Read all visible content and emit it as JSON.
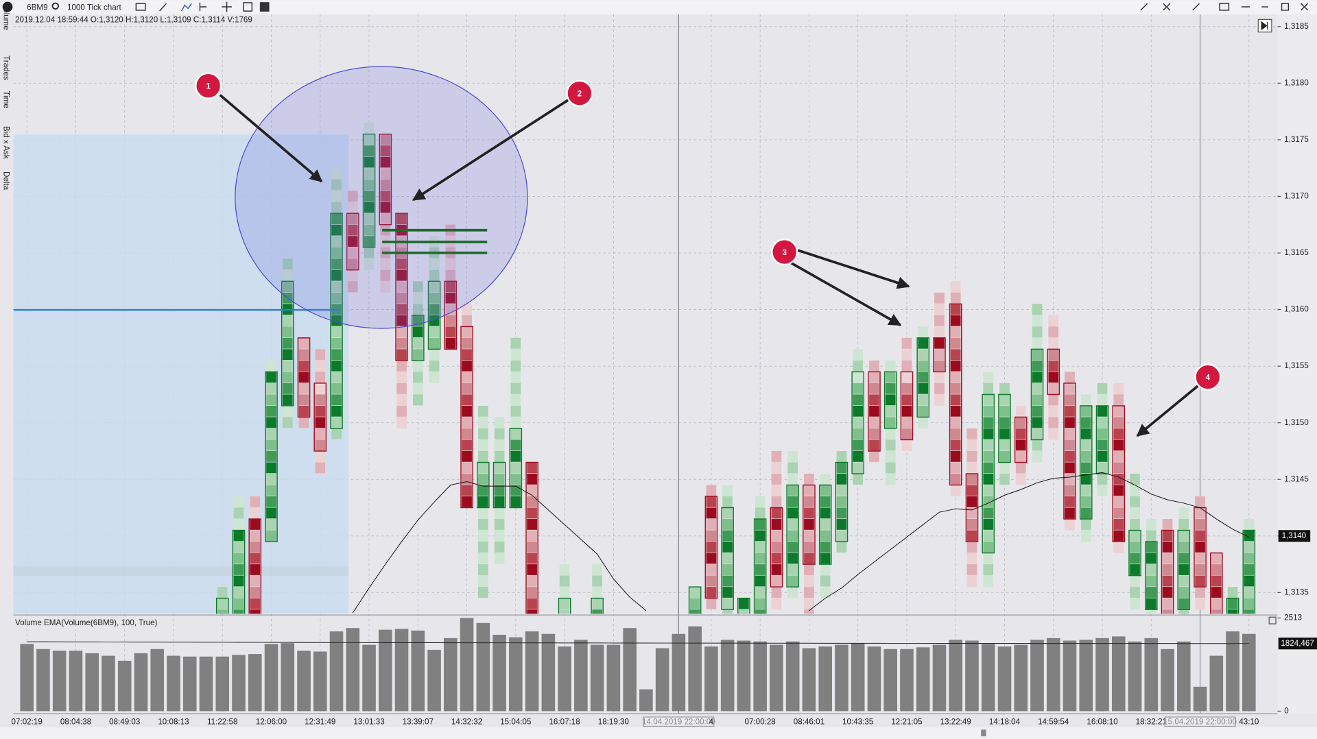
{
  "toolbar": {
    "symbol": "6BM9",
    "chart_type": "1000 Tick chart"
  },
  "info": "2019.12.04 18:59:44 O:1,3120 H:1,3120 L:1,3109 C:1,3114 V:1769",
  "sidebar": [
    "Volume",
    "Trades",
    "Time",
    "Bid x Ask",
    "Delta"
  ],
  "annotations": [
    "1",
    "2",
    "3",
    "4"
  ],
  "chart_data": {
    "type": "candlestick",
    "categories": [
      "07:02:19",
      null,
      null,
      "08:04:38",
      null,
      null,
      "08:49:03",
      null,
      null,
      "10:08:13",
      null,
      null,
      "11:22:58",
      null,
      null,
      "12:06:00",
      null,
      null,
      "12:31:49",
      null,
      null,
      "13:01:33",
      null,
      null,
      "13:39:07",
      null,
      null,
      "14:32:32",
      null,
      null,
      "15:04:05",
      null,
      null,
      "16:07:18",
      null,
      null,
      "18:19:30",
      null,
      null,
      null,
      "14.04.2019 22:00:00",
      null,
      "4",
      null,
      null,
      "07:00:28",
      null,
      null,
      "08:46:01",
      null,
      null,
      "10:43:35",
      null,
      null,
      "12:21:05",
      null,
      null,
      "13:22:49",
      null,
      null,
      "14:18:04",
      null,
      null,
      "14:59:54",
      null,
      null,
      "16:08:10",
      null,
      null,
      "18:32:21",
      null,
      null,
      "15.04.2019 22:00:00",
      null,
      null,
      "43:10"
    ],
    "candles": [
      null,
      null,
      null,
      null,
      null,
      null,
      null,
      null,
      null,
      null,
      null,
      null,
      {
        "o": 1.3133,
        "h": 1.3135,
        "l": 1.3133,
        "c": 1.3134
      },
      {
        "o": 1.3133,
        "h": 1.3143,
        "l": 1.3133,
        "c": 1.314
      },
      {
        "o": 1.3141,
        "h": 1.3143,
        "l": 1.3133,
        "c": 1.3133
      },
      {
        "o": 1.314,
        "h": 1.3155,
        "l": 1.314,
        "c": 1.3154
      },
      {
        "o": 1.3152,
        "h": 1.3164,
        "l": 1.315,
        "c": 1.3162
      },
      {
        "o": 1.3157,
        "h": 1.3157,
        "l": 1.315,
        "c": 1.3151
      },
      {
        "o": 1.3153,
        "h": 1.3156,
        "l": 1.3146,
        "c": 1.3148
      },
      {
        "o": 1.315,
        "h": 1.3172,
        "l": 1.3149,
        "c": 1.3168
      },
      {
        "o": 1.3168,
        "h": 1.317,
        "l": 1.3162,
        "c": 1.3164
      },
      {
        "o": 1.3166,
        "h": 1.3176,
        "l": 1.3164,
        "c": 1.3175
      },
      {
        "o": 1.3175,
        "h": 1.3175,
        "l": 1.3162,
        "c": 1.3168
      },
      {
        "o": 1.3168,
        "h": 1.3168,
        "l": 1.315,
        "c": 1.3156
      },
      {
        "o": 1.3156,
        "h": 1.3162,
        "l": 1.3152,
        "c": 1.3159
      },
      {
        "o": 1.3157,
        "h": 1.3166,
        "l": 1.3154,
        "c": 1.3162
      },
      {
        "o": 1.3162,
        "h": 1.3167,
        "l": 1.3157,
        "c": 1.3157
      },
      {
        "o": 1.3158,
        "h": 1.316,
        "l": 1.3143,
        "c": 1.3143
      },
      {
        "o": 1.3143,
        "h": 1.3151,
        "l": 1.3135,
        "c": 1.3146
      },
      {
        "o": 1.3143,
        "h": 1.315,
        "l": 1.3138,
        "c": 1.3146
      },
      {
        "o": 1.3143,
        "h": 1.3157,
        "l": 1.3143,
        "c": 1.3149
      },
      {
        "o": 1.3146,
        "h": 1.3146,
        "l": 1.3133,
        "c": 1.3133
      },
      null,
      {
        "o": 1.3133,
        "h": 1.3137,
        "l": 1.3133,
        "c": 1.3134
      },
      null,
      {
        "o": 1.3133,
        "h": 1.3137,
        "l": 1.3133,
        "c": 1.3134
      },
      null,
      null,
      null,
      null,
      null,
      {
        "o": 1.3133,
        "h": 1.3135,
        "l": 1.3133,
        "c": 1.3135
      },
      {
        "o": 1.3143,
        "h": 1.3144,
        "l": 1.3134,
        "c": 1.3135
      },
      {
        "o": 1.3134,
        "h": 1.3144,
        "l": 1.3133,
        "c": 1.3142
      },
      {
        "o": 1.3133,
        "h": 1.3134,
        "l": 1.3133,
        "c": 1.3134
      },
      {
        "o": 1.3133,
        "h": 1.3143,
        "l": 1.3133,
        "c": 1.3141
      },
      {
        "o": 1.3142,
        "h": 1.3147,
        "l": 1.3134,
        "c": 1.3136
      },
      {
        "o": 1.3136,
        "h": 1.3147,
        "l": 1.3135,
        "c": 1.3144
      },
      {
        "o": 1.3144,
        "h": 1.3145,
        "l": 1.3133,
        "c": 1.3138
      },
      {
        "o": 1.3138,
        "h": 1.3145,
        "l": 1.3135,
        "c": 1.3144
      },
      {
        "o": 1.314,
        "h": 1.3147,
        "l": 1.3139,
        "c": 1.3146
      },
      {
        "o": 1.3146,
        "h": 1.3156,
        "l": 1.3145,
        "c": 1.3154
      },
      {
        "o": 1.3154,
        "h": 1.3155,
        "l": 1.3147,
        "c": 1.3148
      },
      {
        "o": 1.315,
        "h": 1.3155,
        "l": 1.3145,
        "c": 1.3154
      },
      {
        "o": 1.3154,
        "h": 1.3157,
        "l": 1.3148,
        "c": 1.3149
      },
      {
        "o": 1.3151,
        "h": 1.3158,
        "l": 1.315,
        "c": 1.3157
      },
      {
        "o": 1.3157,
        "h": 1.3161,
        "l": 1.3152,
        "c": 1.3155
      },
      {
        "o": 1.316,
        "h": 1.3162,
        "l": 1.3144,
        "c": 1.3145
      },
      {
        "o": 1.3145,
        "h": 1.3149,
        "l": 1.3136,
        "c": 1.314
      },
      {
        "o": 1.3139,
        "h": 1.3154,
        "l": 1.3136,
        "c": 1.3152
      },
      {
        "o": 1.3147,
        "h": 1.3153,
        "l": 1.3145,
        "c": 1.3152
      },
      {
        "o": 1.315,
        "h": 1.3151,
        "l": 1.3145,
        "c": 1.3147
      },
      {
        "o": 1.3149,
        "h": 1.316,
        "l": 1.3147,
        "c": 1.3156
      },
      {
        "o": 1.3156,
        "h": 1.3159,
        "l": 1.3149,
        "c": 1.3153
      },
      {
        "o": 1.3153,
        "h": 1.3154,
        "l": 1.3141,
        "c": 1.3142
      },
      {
        "o": 1.3142,
        "h": 1.3152,
        "l": 1.314,
        "c": 1.3151
      },
      {
        "o": 1.3146,
        "h": 1.3153,
        "l": 1.3144,
        "c": 1.3151
      },
      {
        "o": 1.3151,
        "h": 1.3153,
        "l": 1.3139,
        "c": 1.314
      },
      {
        "o": 1.3137,
        "h": 1.3145,
        "l": 1.3134,
        "c": 1.314
      },
      {
        "o": 1.3134,
        "h": 1.3141,
        "l": 1.3133,
        "c": 1.3139
      },
      {
        "o": 1.314,
        "h": 1.3141,
        "l": 1.3133,
        "c": 1.3133
      },
      {
        "o": 1.3134,
        "h": 1.3142,
        "l": 1.3133,
        "c": 1.314
      },
      {
        "o": 1.3142,
        "h": 1.3143,
        "l": 1.3134,
        "c": 1.3136
      },
      {
        "o": 1.3138,
        "h": 1.3138,
        "l": 1.3133,
        "c": 1.3133
      },
      {
        "o": 1.3133,
        "h": 1.3135,
        "l": 1.3133,
        "c": 1.3134
      },
      {
        "o": 1.3133,
        "h": 1.3141,
        "l": 1.3133,
        "c": 1.314
      }
    ],
    "up_color": "#107a2c",
    "down_color": "#a10f22",
    "ema": [
      null,
      null,
      null,
      null,
      null,
      null,
      null,
      null,
      null,
      null,
      null,
      null,
      null,
      null,
      null,
      null,
      null,
      null,
      null,
      null,
      1.31332,
      1.31354,
      1.31375,
      1.31395,
      1.31414,
      1.3143,
      1.31445,
      1.31448,
      1.31444,
      1.31444,
      1.31444,
      1.31436,
      1.31423,
      1.3141,
      1.31397,
      1.31384,
      1.31362,
      1.31346,
      1.31334,
      null,
      null,
      null,
      null,
      null,
      null,
      null,
      null,
      null,
      1.31334,
      1.31345,
      1.31354,
      1.31366,
      1.31377,
      1.31388,
      1.31399,
      1.3141,
      1.31421,
      1.31424,
      1.31423,
      1.31429,
      1.31436,
      1.31441,
      1.31447,
      1.31451,
      1.31452,
      1.31454,
      1.31456,
      1.31452,
      1.31445,
      1.31437,
      1.31432,
      1.31429,
      1.31425,
      1.31415,
      1.31406,
      1.31399
    ],
    "ylim": [
      1.31332,
      1.3186
    ],
    "yticks": [
      {
        "value": 1.3135,
        "label": "1,3135"
      },
      {
        "value": 1.314,
        "label": "1,3140"
      },
      {
        "value": 1.3145,
        "label": "1,3145"
      },
      {
        "value": 1.315,
        "label": "1,3150"
      },
      {
        "value": 1.3155,
        "label": "1,3155"
      },
      {
        "value": 1.316,
        "label": "1,3160"
      },
      {
        "value": 1.3165,
        "label": "1,3165"
      },
      {
        "value": 1.317,
        "label": "1,3170"
      },
      {
        "value": 1.3175,
        "label": "1,3175"
      },
      {
        "value": 1.318,
        "label": "1,3180"
      },
      {
        "value": 1.3185,
        "label": "1,3185"
      }
    ],
    "last_price": {
      "value": 1.314,
      "label": "1,3140"
    },
    "volume_title": "Volume EMA(Volume(6BM9), 100, True)",
    "volume": [
      1811,
      1675,
      1630,
      1630,
      1562,
      1494,
      1358,
      1562,
      1675,
      1494,
      1472,
      1472,
      1472,
      1517,
      1540,
      1811,
      1834,
      1630,
      1607,
      2151,
      2241,
      1789,
      2196,
      2219,
      2173,
      1653,
      1970,
      2513,
      2377,
      2060,
      1992,
      2151,
      2083,
      1743,
      1924,
      1789,
      1789,
      2241,
      589,
      1698,
      2083,
      2287,
      1743,
      1924,
      1902,
      1879,
      1789,
      1879,
      1698,
      1743,
      1789,
      1834,
      1743,
      1675,
      1675,
      1721,
      1789,
      1924,
      1902,
      1811,
      1743,
      1789,
      1924,
      1970,
      1902,
      1924,
      1970,
      2015,
      1879,
      1970,
      1675,
      1879,
      657,
      1494,
      2151,
      2083
    ],
    "volume_color": "#808080",
    "volume_ema": [
      1872,
      1871,
      1870,
      1868,
      1867,
      1866,
      1864,
      1863,
      1862,
      1861,
      1860,
      1858,
      1857,
      1856,
      1855,
      1854,
      1853,
      1852,
      1851,
      1850,
      1850,
      1849,
      1848,
      1847,
      1847,
      1846,
      1845,
      1845,
      1844,
      1843,
      1843,
      1842,
      1841,
      1840,
      1840,
      1839,
      1838,
      1838,
      1837,
      1836,
      1836,
      1835,
      1835,
      1834,
      1834,
      1833,
      1833,
      1832,
      1832,
      1831,
      1831,
      1830,
      1830,
      1829,
      1829,
      1829,
      1828,
      1828,
      1828,
      1827,
      1827,
      1827,
      1826,
      1826,
      1826,
      1826,
      1825,
      1825,
      1825,
      1825,
      1825,
      1824,
      1824,
      1824,
      1824,
      1824.467
    ],
    "volume_ylim": [
      0,
      2513
    ],
    "volume_yticks": [
      0,
      2513
    ],
    "volume_last": {
      "value": 1824.467,
      "label": "1824,467"
    },
    "grid": true
  }
}
